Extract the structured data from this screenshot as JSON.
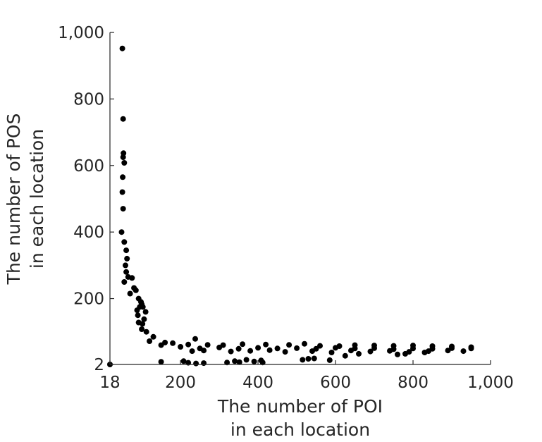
{
  "chart_data": {
    "type": "scatter",
    "title": "",
    "xlabel_lines": [
      "The number of POI",
      "in each location"
    ],
    "ylabel_lines": [
      "The number of POS",
      "in each location"
    ],
    "xlim": [
      18,
      1000
    ],
    "ylim": [
      2,
      1000
    ],
    "xticks": [
      18,
      200,
      400,
      600,
      800,
      1000
    ],
    "xtick_labels": [
      "18",
      "200",
      "400",
      "600",
      "800",
      "1,000"
    ],
    "yticks": [
      2,
      200,
      400,
      600,
      800,
      1000
    ],
    "ytick_labels": [
      "2",
      "200",
      "400",
      "600",
      "800",
      "1,000"
    ],
    "grid": false,
    "legend": "none",
    "marker_color": "#000000",
    "points": [
      [
        18,
        2
      ],
      [
        50,
        952
      ],
      [
        52,
        740
      ],
      [
        53,
        637
      ],
      [
        52,
        625
      ],
      [
        55,
        608
      ],
      [
        51,
        565
      ],
      [
        50,
        520
      ],
      [
        52,
        470
      ],
      [
        48,
        400
      ],
      [
        55,
        370
      ],
      [
        60,
        345
      ],
      [
        62,
        320
      ],
      [
        58,
        300
      ],
      [
        60,
        280
      ],
      [
        65,
        265
      ],
      [
        75,
        262
      ],
      [
        55,
        250
      ],
      [
        80,
        232
      ],
      [
        85,
        225
      ],
      [
        70,
        215
      ],
      [
        92,
        200
      ],
      [
        98,
        190
      ],
      [
        100,
        183
      ],
      [
        95,
        175
      ],
      [
        103,
        175
      ],
      [
        88,
        165
      ],
      [
        110,
        160
      ],
      [
        90,
        150
      ],
      [
        106,
        138
      ],
      [
        92,
        128
      ],
      [
        102,
        124
      ],
      [
        100,
        108
      ],
      [
        112,
        100
      ],
      [
        130,
        85
      ],
      [
        120,
        72
      ],
      [
        150,
        60
      ],
      [
        160,
        68
      ],
      [
        238,
        79
      ],
      [
        150,
        10
      ],
      [
        208,
        12
      ],
      [
        220,
        7
      ],
      [
        240,
        5
      ],
      [
        260,
        6
      ],
      [
        320,
        8
      ],
      [
        340,
        12
      ],
      [
        352,
        9
      ],
      [
        370,
        16
      ],
      [
        390,
        11
      ],
      [
        408,
        14
      ],
      [
        412,
        8
      ],
      [
        515,
        16
      ],
      [
        530,
        19
      ],
      [
        545,
        20
      ],
      [
        585,
        15
      ],
      [
        625,
        28
      ],
      [
        660,
        34
      ],
      [
        760,
        32
      ],
      [
        780,
        34
      ],
      [
        830,
        38
      ],
      [
        180,
        66
      ],
      [
        220,
        62
      ],
      [
        270,
        61
      ],
      [
        310,
        60
      ],
      [
        360,
        63
      ],
      [
        420,
        62
      ],
      [
        480,
        61
      ],
      [
        520,
        64
      ],
      [
        560,
        58
      ],
      [
        610,
        57
      ],
      [
        650,
        60
      ],
      [
        700,
        59
      ],
      [
        750,
        58
      ],
      [
        800,
        59
      ],
      [
        850,
        57
      ],
      [
        900,
        56
      ],
      [
        950,
        54
      ],
      [
        200,
        55
      ],
      [
        250,
        50
      ],
      [
        300,
        53
      ],
      [
        350,
        49
      ],
      [
        400,
        52
      ],
      [
        450,
        50
      ],
      [
        500,
        51
      ],
      [
        550,
        49
      ],
      [
        600,
        52
      ],
      [
        650,
        50
      ],
      [
        700,
        51
      ],
      [
        750,
        48
      ],
      [
        800,
        50
      ],
      [
        850,
        49
      ],
      [
        900,
        51
      ],
      [
        950,
        50
      ],
      [
        230,
        42
      ],
      [
        260,
        44
      ],
      [
        330,
        41
      ],
      [
        380,
        43
      ],
      [
        430,
        45
      ],
      [
        470,
        40
      ],
      [
        540,
        42
      ],
      [
        590,
        38
      ],
      [
        640,
        44
      ],
      [
        690,
        41
      ],
      [
        740,
        43
      ],
      [
        790,
        40
      ],
      [
        840,
        42
      ],
      [
        890,
        44
      ],
      [
        930,
        42
      ]
    ]
  }
}
